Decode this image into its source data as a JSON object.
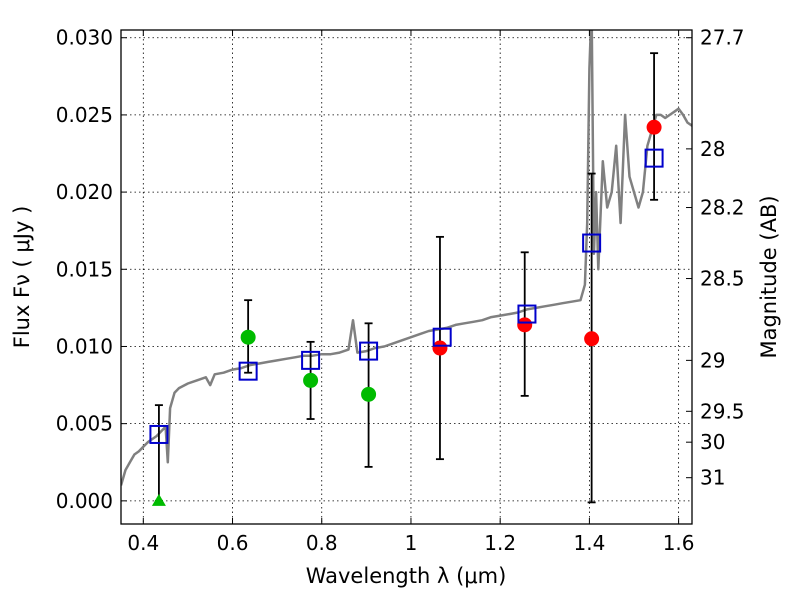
{
  "chart_data": {
    "type": "scatter",
    "xlabel": "Wavelength  λ (μm)",
    "ylabel": "Flux  Fν  ( μJy )",
    "ylabel_right": "Magnitude (AB)",
    "xlim": [
      0.35,
      1.63
    ],
    "ylim": [
      -0.0015,
      0.0305
    ],
    "grid": true,
    "x_ticks": [
      0.4,
      0.6,
      0.8,
      1.0,
      1.2,
      1.4,
      1.6
    ],
    "x_tick_labels": [
      "0.4",
      "0.6",
      "0.8",
      "1",
      "1.2",
      "1.4",
      "1.6"
    ],
    "y_ticks": [
      0.0,
      0.005,
      0.01,
      0.015,
      0.02,
      0.025,
      0.03
    ],
    "y_tick_labels": [
      "0.000",
      "0.005",
      "0.010",
      "0.015",
      "0.020",
      "0.025",
      "0.030"
    ],
    "right_ticks": [
      {
        "label": "27.7",
        "flux": 0.03
      },
      {
        "label": "28",
        "flux": 0.0228
      },
      {
        "label": "28.2",
        "flux": 0.019
      },
      {
        "label": "28.5",
        "flux": 0.0144
      },
      {
        "label": "29",
        "flux": 0.0091
      },
      {
        "label": "29.5",
        "flux": 0.0058
      },
      {
        "label": "30",
        "flux": 0.0038
      },
      {
        "label": "31",
        "flux": 0.0015
      }
    ],
    "model_spectrum": {
      "color": "#808080",
      "x": [
        0.35,
        0.36,
        0.37,
        0.38,
        0.39,
        0.4,
        0.41,
        0.42,
        0.43,
        0.44,
        0.45,
        0.455,
        0.46,
        0.47,
        0.48,
        0.5,
        0.52,
        0.54,
        0.55,
        0.56,
        0.58,
        0.6,
        0.62,
        0.64,
        0.66,
        0.68,
        0.7,
        0.72,
        0.74,
        0.76,
        0.78,
        0.8,
        0.82,
        0.84,
        0.86,
        0.87,
        0.88,
        0.9,
        0.92,
        0.94,
        0.96,
        0.98,
        1.0,
        1.02,
        1.04,
        1.06,
        1.08,
        1.1,
        1.12,
        1.14,
        1.16,
        1.18,
        1.2,
        1.22,
        1.24,
        1.26,
        1.28,
        1.3,
        1.32,
        1.34,
        1.36,
        1.38,
        1.39,
        1.395,
        1.4,
        1.405,
        1.41,
        1.415,
        1.42,
        1.43,
        1.44,
        1.45,
        1.46,
        1.47,
        1.48,
        1.49,
        1.5,
        1.51,
        1.52,
        1.53,
        1.54,
        1.55,
        1.56,
        1.57,
        1.58,
        1.59,
        1.6,
        1.61,
        1.62,
        1.63
      ],
      "y": [
        0.001,
        0.002,
        0.0025,
        0.003,
        0.0032,
        0.0035,
        0.0038,
        0.004,
        0.0042,
        0.0045,
        0.0048,
        0.0025,
        0.006,
        0.007,
        0.0073,
        0.0076,
        0.0078,
        0.008,
        0.0075,
        0.0082,
        0.0083,
        0.0085,
        0.0086,
        0.0088,
        0.0089,
        0.009,
        0.0091,
        0.0092,
        0.0093,
        0.0094,
        0.0094,
        0.0095,
        0.0095,
        0.0096,
        0.0098,
        0.0117,
        0.0096,
        0.0097,
        0.0099,
        0.01,
        0.0102,
        0.0104,
        0.0106,
        0.0108,
        0.011,
        0.0111,
        0.0112,
        0.0114,
        0.0115,
        0.0116,
        0.0117,
        0.0119,
        0.012,
        0.0121,
        0.0122,
        0.0124,
        0.0125,
        0.0126,
        0.0127,
        0.0128,
        0.0129,
        0.013,
        0.014,
        0.018,
        0.028,
        0.032,
        0.016,
        0.02,
        0.015,
        0.022,
        0.019,
        0.02,
        0.023,
        0.018,
        0.025,
        0.021,
        0.02,
        0.019,
        0.02,
        0.023,
        0.024,
        0.025,
        0.025,
        0.0248,
        0.025,
        0.0252,
        0.0254,
        0.025,
        0.0245,
        0.0243
      ]
    },
    "model_photometry": {
      "color": "#0000cc",
      "marker": "square",
      "x": [
        0.435,
        0.635,
        0.775,
        0.905,
        1.07,
        1.26,
        1.405,
        1.545
      ],
      "y": [
        0.0043,
        0.0084,
        0.0091,
        0.0097,
        0.0106,
        0.0121,
        0.0167,
        0.0222
      ]
    },
    "detections": {
      "color": "#ff0000",
      "marker": "circle",
      "x": [
        1.065,
        1.255,
        1.405,
        1.545
      ],
      "y": [
        0.0099,
        0.0114,
        0.0105,
        0.0242
      ]
    },
    "nondetections": {
      "color": "#00bb00",
      "marker": "circle",
      "x": [
        0.635,
        0.775,
        0.905
      ],
      "y": [
        0.0106,
        0.0078,
        0.0069
      ]
    },
    "upper_limits": {
      "color": "#00bb00",
      "marker": "triangle",
      "x": [
        0.435
      ],
      "y": [
        0.0
      ]
    },
    "error_bars": [
      {
        "x": 0.435,
        "low": 0.0,
        "high": 0.0062
      },
      {
        "x": 0.635,
        "low": 0.0083,
        "high": 0.013
      },
      {
        "x": 0.775,
        "low": 0.0053,
        "high": 0.0103
      },
      {
        "x": 0.905,
        "low": 0.0022,
        "high": 0.0115
      },
      {
        "x": 1.065,
        "low": 0.0027,
        "high": 0.0171
      },
      {
        "x": 1.255,
        "low": 0.0068,
        "high": 0.0161
      },
      {
        "x": 1.405,
        "low": -0.0001,
        "high": 0.0212
      },
      {
        "x": 1.545,
        "low": 0.0195,
        "high": 0.029
      }
    ]
  }
}
